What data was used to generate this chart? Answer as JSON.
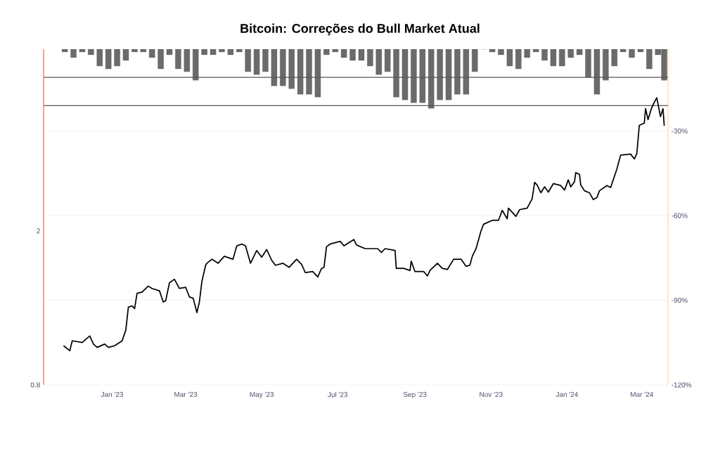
{
  "chart_data": {
    "type": "line",
    "title": "Bitcoin: Correções do Bull Market Atual",
    "log": "y",
    "grid": "y",
    "xlim": [
      "2022-11-07",
      "2024-03-22"
    ],
    "xticks": [
      {
        "value": "2023-01-01",
        "label": "Jan '23"
      },
      {
        "value": "2023-03-01",
        "label": "Mar '23"
      },
      {
        "value": "2023-05-01",
        "label": "May '23"
      },
      {
        "value": "2023-07-01",
        "label": "Jul '23"
      },
      {
        "value": "2023-09-01",
        "label": "Sep '23"
      },
      {
        "value": "2023-11-01",
        "label": "Nov '23"
      },
      {
        "value": "2024-01-01",
        "label": "Jan '24"
      },
      {
        "value": "2024-03-01",
        "label": "Mar '24"
      }
    ],
    "ylim": [
      0.8,
      5.9
    ],
    "yticks": [
      0.8,
      2
    ],
    "y2lim": [
      -120,
      -1
    ],
    "y2ticks": [
      {
        "value": -30,
        "label": "-30%"
      },
      {
        "value": -60,
        "label": "-60%"
      },
      {
        "value": -90,
        "label": "-90%"
      },
      {
        "value": -120,
        "label": "-120%"
      }
    ],
    "ref_lines": [
      {
        "axis": "y2",
        "value": -11,
        "color": "#555555"
      },
      {
        "axis": "y2",
        "value": -21,
        "color": "#555555"
      }
    ],
    "series": [
      {
        "type": "bar",
        "axis": "y2",
        "color": "#6b6b6b",
        "x": [
          "2022-11-24",
          "2022-12-01",
          "2022-12-08",
          "2022-12-15",
          "2022-12-22",
          "2022-12-29",
          "2023-01-05",
          "2023-01-12",
          "2023-01-19",
          "2023-01-26",
          "2023-02-02",
          "2023-02-09",
          "2023-02-16",
          "2023-02-23",
          "2023-03-02",
          "2023-03-09",
          "2023-03-16",
          "2023-03-23",
          "2023-03-30",
          "2023-04-06",
          "2023-04-13",
          "2023-04-20",
          "2023-04-27",
          "2023-05-04",
          "2023-05-11",
          "2023-05-18",
          "2023-05-25",
          "2023-06-01",
          "2023-06-08",
          "2023-06-15",
          "2023-06-22",
          "2023-06-29",
          "2023-07-06",
          "2023-07-13",
          "2023-07-20",
          "2023-07-27",
          "2023-08-03",
          "2023-08-10",
          "2023-08-17",
          "2023-08-24",
          "2023-08-31",
          "2023-09-07",
          "2023-09-14",
          "2023-09-21",
          "2023-09-28",
          "2023-10-05",
          "2023-10-12",
          "2023-10-19",
          "2023-10-26",
          "2023-11-02",
          "2023-11-09",
          "2023-11-16",
          "2023-11-23",
          "2023-11-30",
          "2023-12-07",
          "2023-12-14",
          "2023-12-21",
          "2023-12-28",
          "2024-01-04",
          "2024-01-11",
          "2024-01-18",
          "2024-01-25",
          "2024-02-01",
          "2024-02-08",
          "2024-02-15",
          "2024-02-22",
          "2024-02-29",
          "2024-03-07",
          "2024-03-14",
          "2024-03-19"
        ],
        "values": [
          -2,
          -4,
          -2,
          -3,
          -7,
          -8,
          -7,
          -5,
          -2,
          -2,
          -4,
          -8,
          -3,
          -8,
          -9,
          -12,
          -3,
          -3,
          -2,
          -3,
          -2,
          -9,
          -10,
          -9,
          -14,
          -14,
          -15,
          -17,
          -17,
          -18,
          -3,
          -2,
          -4,
          -5,
          -5,
          -7,
          -10,
          -9,
          -18,
          -19,
          -20,
          -20,
          -22,
          -19,
          -19,
          -17,
          -17,
          -9,
          -1,
          -2,
          -3,
          -7,
          -8,
          -4,
          -2,
          -5,
          -7,
          -7,
          -4,
          -3,
          -11,
          -17,
          -12,
          -7,
          -2,
          -4,
          -2,
          -8,
          -3,
          -12
        ]
      },
      {
        "color": "#000000",
        "x": [
          "2022-11-23",
          "2022-11-28",
          "2022-11-30",
          "2022-12-08",
          "2022-12-14",
          "2022-12-17",
          "2022-12-20",
          "2022-12-26",
          "2022-12-29",
          "2023-01-03",
          "2023-01-09",
          "2023-01-12",
          "2023-01-14",
          "2023-01-17",
          "2023-01-19",
          "2023-01-21",
          "2023-01-25",
          "2023-01-30",
          "2023-02-02",
          "2023-02-08",
          "2023-02-11",
          "2023-02-13",
          "2023-02-16",
          "2023-02-20",
          "2023-02-24",
          "2023-03-01",
          "2023-03-04",
          "2023-03-07",
          "2023-03-10",
          "2023-03-12",
          "2023-03-14",
          "2023-03-17",
          "2023-03-18",
          "2023-03-22",
          "2023-03-27",
          "2023-04-01",
          "2023-04-08",
          "2023-04-11",
          "2023-04-15",
          "2023-04-18",
          "2023-04-22",
          "2023-04-27",
          "2023-05-01",
          "2023-05-05",
          "2023-05-09",
          "2023-05-12",
          "2023-05-18",
          "2023-05-23",
          "2023-05-29",
          "2023-06-02",
          "2023-06-05",
          "2023-06-11",
          "2023-06-15",
          "2023-06-18",
          "2023-06-20",
          "2023-06-22",
          "2023-06-25",
          "2023-07-03",
          "2023-07-06",
          "2023-07-14",
          "2023-07-16",
          "2023-07-23",
          "2023-08-02",
          "2023-08-05",
          "2023-08-08",
          "2023-08-16",
          "2023-08-17",
          "2023-08-23",
          "2023-08-28",
          "2023-08-29",
          "2023-09-01",
          "2023-09-08",
          "2023-09-11",
          "2023-09-13",
          "2023-09-19",
          "2023-09-23",
          "2023-09-27",
          "2023-10-02",
          "2023-10-08",
          "2023-10-12",
          "2023-10-15",
          "2023-10-17",
          "2023-10-20",
          "2023-10-24",
          "2023-10-26",
          "2023-11-02",
          "2023-11-07",
          "2023-11-10",
          "2023-11-14",
          "2023-11-15",
          "2023-11-21",
          "2023-11-24",
          "2023-11-30",
          "2023-12-04",
          "2023-12-06",
          "2023-12-08",
          "2023-12-11",
          "2023-12-14",
          "2023-12-17",
          "2023-12-21",
          "2023-12-27",
          "2023-12-30",
          "2024-01-02",
          "2024-01-04",
          "2024-01-07",
          "2024-01-08",
          "2024-01-11",
          "2024-01-12",
          "2024-01-15",
          "2024-01-19",
          "2024-01-22",
          "2024-01-25",
          "2024-01-27",
          "2024-02-02",
          "2024-02-05",
          "2024-02-10",
          "2024-02-13",
          "2024-02-21",
          "2024-02-24",
          "2024-02-26",
          "2024-02-28",
          "2024-03-03",
          "2024-03-04",
          "2024-03-06",
          "2024-03-09",
          "2024-03-12",
          "2024-03-13",
          "2024-03-16",
          "2024-03-18",
          "2024-03-19"
        ],
        "values": [
          1.01,
          0.98,
          1.04,
          1.03,
          1.07,
          1.02,
          1.0,
          1.02,
          1.0,
          1.01,
          1.04,
          1.11,
          1.27,
          1.28,
          1.26,
          1.38,
          1.39,
          1.44,
          1.42,
          1.4,
          1.31,
          1.32,
          1.47,
          1.5,
          1.42,
          1.43,
          1.35,
          1.34,
          1.23,
          1.31,
          1.48,
          1.63,
          1.65,
          1.69,
          1.65,
          1.72,
          1.69,
          1.83,
          1.85,
          1.83,
          1.65,
          1.78,
          1.71,
          1.79,
          1.68,
          1.63,
          1.65,
          1.61,
          1.69,
          1.64,
          1.56,
          1.57,
          1.52,
          1.6,
          1.61,
          1.82,
          1.85,
          1.88,
          1.83,
          1.9,
          1.84,
          1.8,
          1.8,
          1.76,
          1.8,
          1.78,
          1.6,
          1.6,
          1.58,
          1.67,
          1.57,
          1.57,
          1.53,
          1.58,
          1.65,
          1.6,
          1.59,
          1.69,
          1.69,
          1.62,
          1.63,
          1.72,
          1.8,
          2.0,
          2.08,
          2.13,
          2.13,
          2.26,
          2.15,
          2.29,
          2.18,
          2.27,
          2.29,
          2.42,
          2.67,
          2.63,
          2.51,
          2.6,
          2.52,
          2.65,
          2.62,
          2.55,
          2.71,
          2.6,
          2.68,
          2.83,
          2.8,
          2.63,
          2.54,
          2.51,
          2.41,
          2.44,
          2.54,
          2.62,
          2.59,
          2.89,
          3.14,
          3.16,
          3.07,
          3.17,
          3.75,
          3.8,
          4.14,
          3.88,
          4.17,
          4.36,
          4.42,
          3.95,
          4.14,
          3.74
        ]
      }
    ]
  }
}
